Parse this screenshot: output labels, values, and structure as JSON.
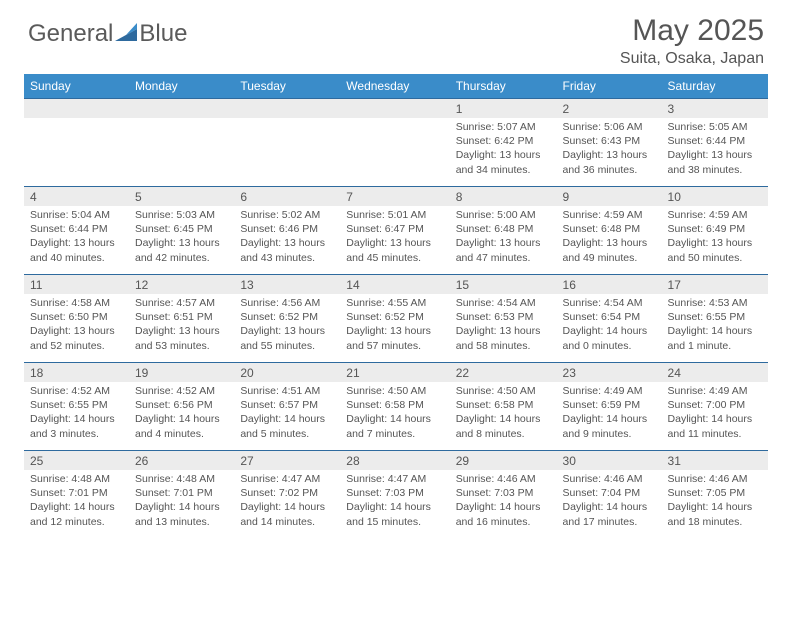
{
  "brand": {
    "part1": "General",
    "part2": "Blue"
  },
  "title": "May 2025",
  "location": "Suita, Osaka, Japan",
  "accent_color": "#3a8cc9",
  "border_color": "#2e6a9e",
  "daybg_color": "#ececec",
  "text_color": "#555555",
  "weekdays": [
    "Sunday",
    "Monday",
    "Tuesday",
    "Wednesday",
    "Thursday",
    "Friday",
    "Saturday"
  ],
  "weeks": [
    {
      "nums": [
        "",
        "",
        "",
        "",
        "1",
        "2",
        "3"
      ],
      "cells": [
        null,
        null,
        null,
        null,
        {
          "sunrise": "Sunrise: 5:07 AM",
          "sunset": "Sunset: 6:42 PM",
          "daylight": "Daylight: 13 hours and 34 minutes."
        },
        {
          "sunrise": "Sunrise: 5:06 AM",
          "sunset": "Sunset: 6:43 PM",
          "daylight": "Daylight: 13 hours and 36 minutes."
        },
        {
          "sunrise": "Sunrise: 5:05 AM",
          "sunset": "Sunset: 6:44 PM",
          "daylight": "Daylight: 13 hours and 38 minutes."
        }
      ]
    },
    {
      "nums": [
        "4",
        "5",
        "6",
        "7",
        "8",
        "9",
        "10"
      ],
      "cells": [
        {
          "sunrise": "Sunrise: 5:04 AM",
          "sunset": "Sunset: 6:44 PM",
          "daylight": "Daylight: 13 hours and 40 minutes."
        },
        {
          "sunrise": "Sunrise: 5:03 AM",
          "sunset": "Sunset: 6:45 PM",
          "daylight": "Daylight: 13 hours and 42 minutes."
        },
        {
          "sunrise": "Sunrise: 5:02 AM",
          "sunset": "Sunset: 6:46 PM",
          "daylight": "Daylight: 13 hours and 43 minutes."
        },
        {
          "sunrise": "Sunrise: 5:01 AM",
          "sunset": "Sunset: 6:47 PM",
          "daylight": "Daylight: 13 hours and 45 minutes."
        },
        {
          "sunrise": "Sunrise: 5:00 AM",
          "sunset": "Sunset: 6:48 PM",
          "daylight": "Daylight: 13 hours and 47 minutes."
        },
        {
          "sunrise": "Sunrise: 4:59 AM",
          "sunset": "Sunset: 6:48 PM",
          "daylight": "Daylight: 13 hours and 49 minutes."
        },
        {
          "sunrise": "Sunrise: 4:59 AM",
          "sunset": "Sunset: 6:49 PM",
          "daylight": "Daylight: 13 hours and 50 minutes."
        }
      ]
    },
    {
      "nums": [
        "11",
        "12",
        "13",
        "14",
        "15",
        "16",
        "17"
      ],
      "cells": [
        {
          "sunrise": "Sunrise: 4:58 AM",
          "sunset": "Sunset: 6:50 PM",
          "daylight": "Daylight: 13 hours and 52 minutes."
        },
        {
          "sunrise": "Sunrise: 4:57 AM",
          "sunset": "Sunset: 6:51 PM",
          "daylight": "Daylight: 13 hours and 53 minutes."
        },
        {
          "sunrise": "Sunrise: 4:56 AM",
          "sunset": "Sunset: 6:52 PM",
          "daylight": "Daylight: 13 hours and 55 minutes."
        },
        {
          "sunrise": "Sunrise: 4:55 AM",
          "sunset": "Sunset: 6:52 PM",
          "daylight": "Daylight: 13 hours and 57 minutes."
        },
        {
          "sunrise": "Sunrise: 4:54 AM",
          "sunset": "Sunset: 6:53 PM",
          "daylight": "Daylight: 13 hours and 58 minutes."
        },
        {
          "sunrise": "Sunrise: 4:54 AM",
          "sunset": "Sunset: 6:54 PM",
          "daylight": "Daylight: 14 hours and 0 minutes."
        },
        {
          "sunrise": "Sunrise: 4:53 AM",
          "sunset": "Sunset: 6:55 PM",
          "daylight": "Daylight: 14 hours and 1 minute."
        }
      ]
    },
    {
      "nums": [
        "18",
        "19",
        "20",
        "21",
        "22",
        "23",
        "24"
      ],
      "cells": [
        {
          "sunrise": "Sunrise: 4:52 AM",
          "sunset": "Sunset: 6:55 PM",
          "daylight": "Daylight: 14 hours and 3 minutes."
        },
        {
          "sunrise": "Sunrise: 4:52 AM",
          "sunset": "Sunset: 6:56 PM",
          "daylight": "Daylight: 14 hours and 4 minutes."
        },
        {
          "sunrise": "Sunrise: 4:51 AM",
          "sunset": "Sunset: 6:57 PM",
          "daylight": "Daylight: 14 hours and 5 minutes."
        },
        {
          "sunrise": "Sunrise: 4:50 AM",
          "sunset": "Sunset: 6:58 PM",
          "daylight": "Daylight: 14 hours and 7 minutes."
        },
        {
          "sunrise": "Sunrise: 4:50 AM",
          "sunset": "Sunset: 6:58 PM",
          "daylight": "Daylight: 14 hours and 8 minutes."
        },
        {
          "sunrise": "Sunrise: 4:49 AM",
          "sunset": "Sunset: 6:59 PM",
          "daylight": "Daylight: 14 hours and 9 minutes."
        },
        {
          "sunrise": "Sunrise: 4:49 AM",
          "sunset": "Sunset: 7:00 PM",
          "daylight": "Daylight: 14 hours and 11 minutes."
        }
      ]
    },
    {
      "nums": [
        "25",
        "26",
        "27",
        "28",
        "29",
        "30",
        "31"
      ],
      "cells": [
        {
          "sunrise": "Sunrise: 4:48 AM",
          "sunset": "Sunset: 7:01 PM",
          "daylight": "Daylight: 14 hours and 12 minutes."
        },
        {
          "sunrise": "Sunrise: 4:48 AM",
          "sunset": "Sunset: 7:01 PM",
          "daylight": "Daylight: 14 hours and 13 minutes."
        },
        {
          "sunrise": "Sunrise: 4:47 AM",
          "sunset": "Sunset: 7:02 PM",
          "daylight": "Daylight: 14 hours and 14 minutes."
        },
        {
          "sunrise": "Sunrise: 4:47 AM",
          "sunset": "Sunset: 7:03 PM",
          "daylight": "Daylight: 14 hours and 15 minutes."
        },
        {
          "sunrise": "Sunrise: 4:46 AM",
          "sunset": "Sunset: 7:03 PM",
          "daylight": "Daylight: 14 hours and 16 minutes."
        },
        {
          "sunrise": "Sunrise: 4:46 AM",
          "sunset": "Sunset: 7:04 PM",
          "daylight": "Daylight: 14 hours and 17 minutes."
        },
        {
          "sunrise": "Sunrise: 4:46 AM",
          "sunset": "Sunset: 7:05 PM",
          "daylight": "Daylight: 14 hours and 18 minutes."
        }
      ]
    }
  ]
}
